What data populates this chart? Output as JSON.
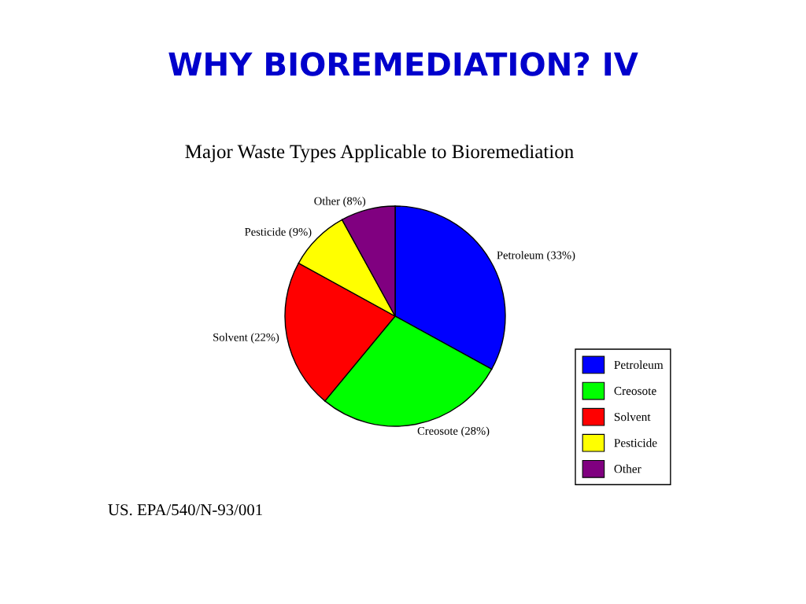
{
  "chart_data": {
    "type": "pie",
    "title": "WHY BIOREMEDIATION? IV",
    "subtitle": "Major Waste Types Applicable to Bioremediation",
    "categories": [
      "Petroleum",
      "Creosote",
      "Solvent",
      "Pesticide",
      "Other"
    ],
    "values": [
      33,
      28,
      22,
      9,
      8
    ],
    "colors": [
      "#0000ff",
      "#00ff00",
      "#ff0000",
      "#ffff00",
      "#800080"
    ],
    "value_labels": [
      "Petroleum (33%)",
      "Creosote (28%)",
      "Solvent (22%)",
      "Pesticide (9%)",
      "Other (8%)"
    ],
    "legend": "bottom right",
    "annotations": [
      "US. EPA/540/N-93/001"
    ]
  }
}
